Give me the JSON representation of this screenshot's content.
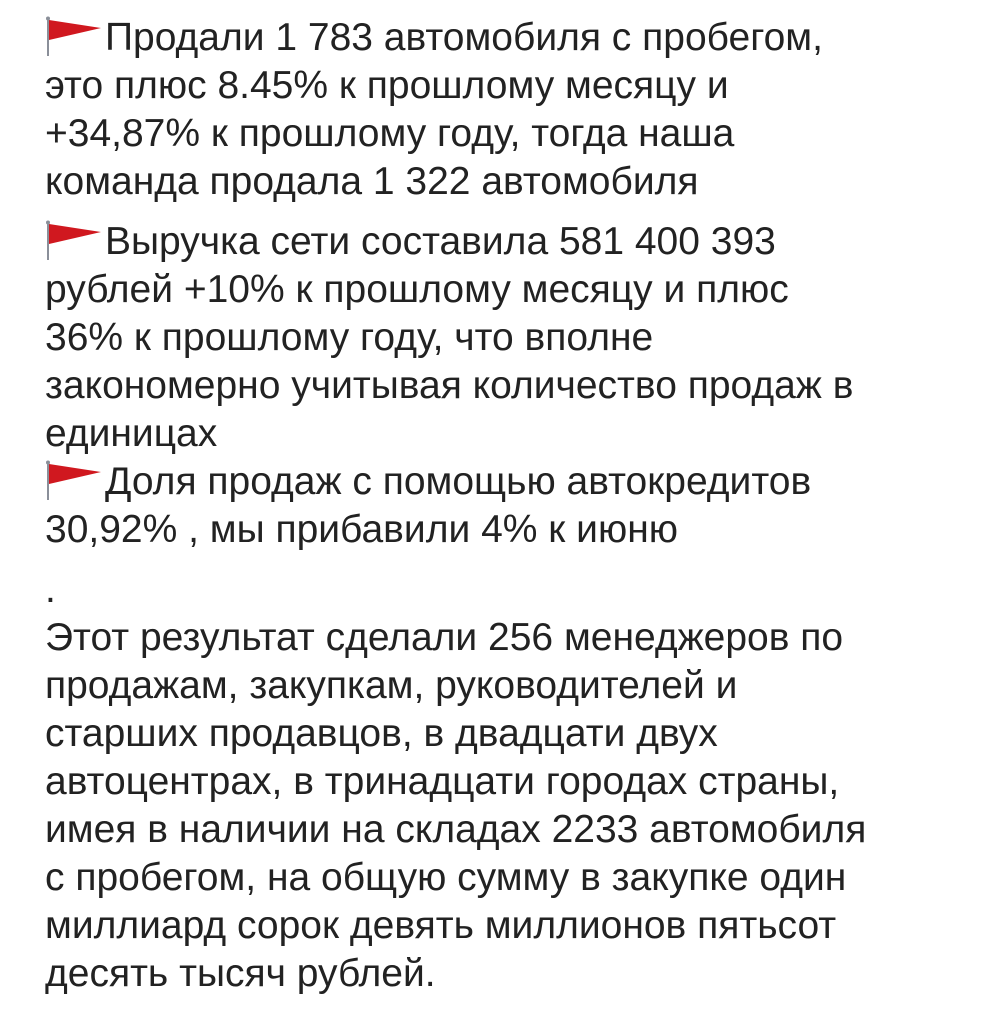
{
  "flag_color": "#d0181f",
  "bullets": [
    {
      "icon": "red-triangular-flag-icon",
      "lines": [
        "Продали 1 783 автомобиля с пробегом,",
        "это плюс 8.45% к прошлому месяцу и",
        "+34,87% к прошлому году, тогда наша",
        "команда продала 1 322 автомобиля"
      ]
    },
    {
      "icon": "red-triangular-flag-icon",
      "lines": [
        "Выручка сети составила 581 400 393",
        "рублей +10% к прошлому месяцу и плюс",
        "36% к прошлому году, что вполне",
        "закономерно учитывая количество продаж в",
        "единицах"
      ]
    },
    {
      "icon": "red-triangular-flag-icon",
      "lines": [
        "Доля продаж с помощью автокредитов",
        "30,92% , мы прибавили 4% к июню"
      ]
    }
  ],
  "separator": ".",
  "closing": {
    "lines": [
      "Этот результат сделали 256 менеджеров по",
      "продажам, закупкам, руководителей и",
      "старших продавцов, в двадцати двух",
      "автоцентрах, в тринадцати городах страны,",
      "имея в наличии на складах 2233 автомобиля",
      "с пробегом, на общую сумму в закупке один",
      "миллиард сорок девять миллионов пятьсот",
      "десять тысяч рублей."
    ]
  }
}
